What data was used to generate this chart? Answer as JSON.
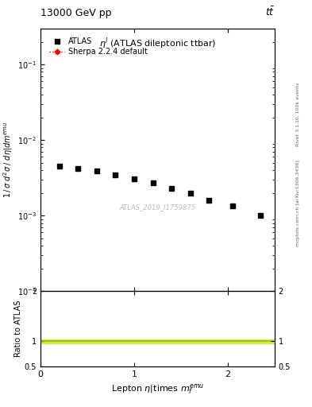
{
  "title_left": "13000 GeV pp",
  "title_right": "t$\\bar{t}$",
  "plot_title": "$\\eta^{l}$ (ATLAS dileptonic ttbar)",
  "right_label_top": "Rivet 3.1.10, 100k events",
  "right_label_bottom": "mcplots.cern.ch [arXiv:1306.3436]",
  "watermark": "ATLAS_2019_I1759875",
  "xlabel": "Lepton $\\eta|$times $m_f^{emu}$",
  "ylabel": "1 / σ d²σ / dη|dm$^{emu}$",
  "ylabel_ratio": "Ratio to ATLAS",
  "data_x": [
    0.2,
    0.4,
    0.6,
    0.8,
    1.0,
    1.2,
    1.4,
    1.6,
    1.8,
    2.05,
    2.35
  ],
  "data_y": [
    0.0045,
    0.0042,
    0.0039,
    0.0035,
    0.0031,
    0.0027,
    0.0023,
    0.002,
    0.0016,
    0.00135,
    0.001
  ],
  "ylim_main": [
    0.0001,
    0.3
  ],
  "ylim_ratio": [
    0.5,
    2.0
  ],
  "xlim": [
    0.0,
    2.5
  ],
  "xticks": [
    0,
    1,
    2
  ],
  "ratio_band_color": "#ccee44",
  "ratio_line_color": "#99bb00",
  "marker_color": "black",
  "sherpa_color": "red",
  "bg_color": "white",
  "legend_atlas": "ATLAS",
  "legend_sherpa": "Sherpa 2.2.4 default"
}
